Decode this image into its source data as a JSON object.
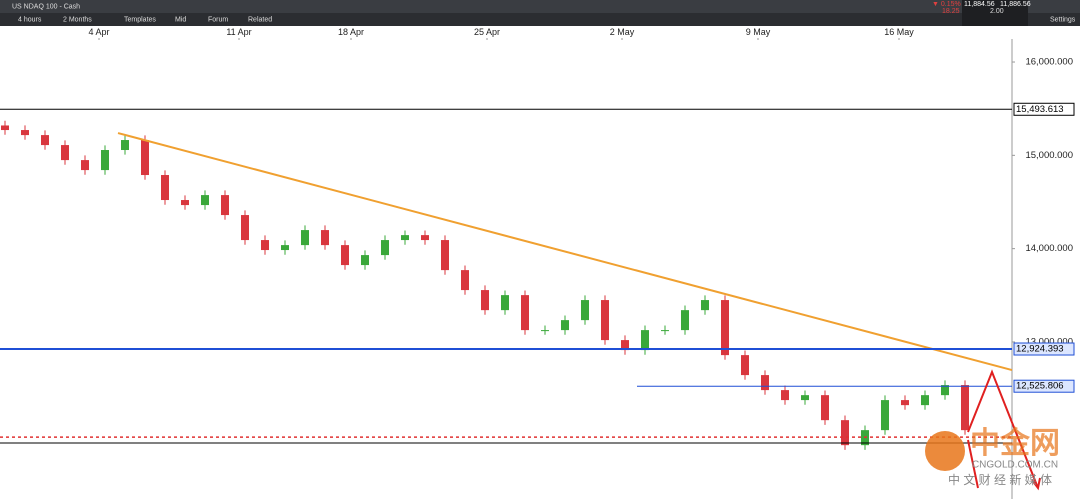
{
  "toolbar": {
    "instrument": "US NDAQ 100 - Cash",
    "interval": "4 hours",
    "range": "2 Months",
    "buttons": [
      "Templates",
      "Mid",
      "Forum",
      "Related"
    ],
    "change_pct": "▼ 0.15%",
    "change": "18.25",
    "sell": "11,884.56",
    "spread": "2.00",
    "buy": "11,886.56",
    "settings": "Settings"
  },
  "chart_data": {
    "type": "candlestick",
    "x": [
      0,
      1,
      2,
      3,
      4,
      5,
      6,
      7,
      8,
      9,
      10,
      11,
      12,
      13,
      14,
      15,
      16,
      17,
      18,
      19,
      20,
      21,
      22,
      23,
      24,
      25,
      26,
      27,
      28,
      29,
      30,
      31,
      32,
      33,
      34,
      35,
      36,
      37,
      38,
      39,
      40,
      41,
      42,
      43,
      44,
      45,
      46,
      47,
      48
    ],
    "open": [
      15320,
      15271,
      15217,
      15110,
      14949,
      14842,
      15057,
      15164,
      14789,
      14521,
      14467,
      14574,
      14360,
      14092,
      13985,
      14038,
      14199,
      14038,
      13824,
      13931,
      14092,
      14145,
      14092,
      13770,
      13556,
      13341,
      13502,
      13127,
      13127,
      13234,
      13449,
      13020,
      12913,
      13127,
      13127,
      13341,
      13449,
      12859,
      12645,
      12484,
      12377,
      12430,
      12162,
      11894,
      12055,
      12377,
      12323,
      12430,
      12538
    ],
    "high": [
      15370,
      15321,
      15267,
      15160,
      14999,
      15107,
      15214,
      15214,
      14839,
      14571,
      14624,
      14624,
      14410,
      14142,
      14088,
      14249,
      14249,
      14088,
      13981,
      14142,
      14195,
      14195,
      14142,
      13820,
      13606,
      13552,
      13552,
      13177,
      13284,
      13499,
      13499,
      13070,
      13177,
      13177,
      13391,
      13499,
      13499,
      12909,
      12695,
      12534,
      12480,
      12480,
      12212,
      12105,
      12427,
      12427,
      12480,
      12588,
      12588
    ],
    "low": [
      15221,
      15167,
      15060,
      14899,
      14792,
      14792,
      15007,
      14739,
      14471,
      14417,
      14417,
      14310,
      14042,
      13935,
      13935,
      13988,
      13988,
      13774,
      13774,
      13881,
      14042,
      14042,
      13720,
      13506,
      13291,
      13291,
      13077,
      13077,
      13077,
      13184,
      12970,
      12863,
      12863,
      13077,
      13077,
      13291,
      12809,
      12595,
      12434,
      12327,
      12327,
      12112,
      11844,
      11844,
      12005,
      12273,
      12273,
      12380,
      12005
    ],
    "close": [
      15271,
      15217,
      15110,
      14949,
      14842,
      15057,
      15164,
      14789,
      14521,
      14467,
      14574,
      14360,
      14092,
      13985,
      14038,
      14199,
      14038,
      13824,
      13931,
      14092,
      14145,
      14092,
      13770,
      13556,
      13341,
      13502,
      13127,
      13127,
      13234,
      13449,
      13020,
      12913,
      13127,
      13127,
      13341,
      13449,
      12859,
      12645,
      12484,
      12377,
      12430,
      12162,
      11894,
      12055,
      12377,
      12323,
      12430,
      12538,
      12055
    ],
    "up_color": "#3aa83a",
    "down_color": "#d9363e",
    "xlim": [
      -0.25,
      50.35
    ],
    "xticks": [
      {
        "value": 4.7,
        "label": "4 Apr"
      },
      {
        "value": 11.7,
        "label": "11 Apr"
      },
      {
        "value": 17.3,
        "label": "18 Apr"
      },
      {
        "value": 24.1,
        "label": "25 Apr"
      },
      {
        "value": 30.85,
        "label": "2 May"
      },
      {
        "value": 37.65,
        "label": "9 May"
      },
      {
        "value": 44.7,
        "label": "16 May"
      }
    ],
    "ylim": [
      11317,
      16236
    ],
    "yticks": [
      {
        "value": 16000,
        "label": "16,000.000"
      },
      {
        "value": 15000,
        "label": "15,000.000"
      },
      {
        "value": 14000,
        "label": "14,000.000"
      },
      {
        "value": 13000,
        "label": "13,000.000"
      }
    ],
    "levels": [
      {
        "value": 15493.613,
        "label": "15,493.613",
        "color": "#000000"
      },
      {
        "value": 12924.393,
        "label": "12,924.393",
        "color": "#1f4fd6"
      },
      {
        "value": 12525.806,
        "label": "12,525.806",
        "color": "#1f4fd6"
      }
    ],
    "support": [
      11980,
      11917
    ],
    "trendline": {
      "x": [
        5.65,
        50.35
      ],
      "y": [
        15239,
        12699
      ],
      "color": "#f0a030"
    }
  },
  "watermark": {
    "logo": "中金网",
    "site": "CNGOLD.COM.CN",
    "tagline": "中 文 财 经 新 媒 体"
  }
}
